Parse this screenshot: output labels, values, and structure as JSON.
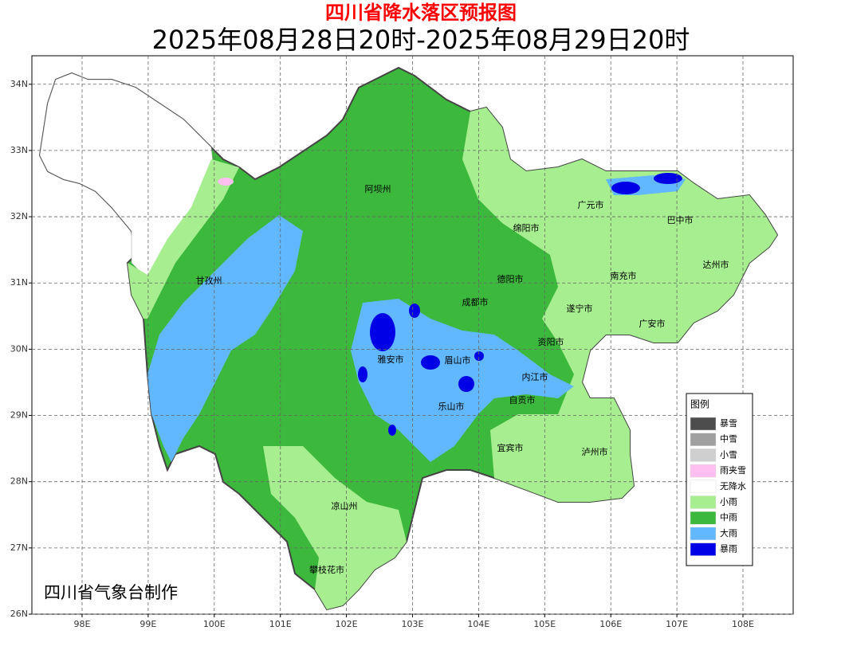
{
  "header": {
    "title": "四川省降水落区预报图",
    "subtitle": "2025年08月28日20时-2025年08月29日20时"
  },
  "map": {
    "xlim": [
      97.24,
      108.76
    ],
    "ylim": [
      26,
      34.43
    ],
    "xticks": [
      {
        "value": 98,
        "label": "98E"
      },
      {
        "value": 99,
        "label": "99E"
      },
      {
        "value": 100,
        "label": "100E"
      },
      {
        "value": 101,
        "label": "101E"
      },
      {
        "value": 102,
        "label": "102E"
      },
      {
        "value": 103,
        "label": "103E"
      },
      {
        "value": 104,
        "label": "104E"
      },
      {
        "value": 105,
        "label": "105E"
      },
      {
        "value": 106,
        "label": "106E"
      },
      {
        "value": 107,
        "label": "107E"
      },
      {
        "value": 108,
        "label": "108E"
      }
    ],
    "yticks": [
      {
        "value": 26,
        "label": "26N"
      },
      {
        "value": 27,
        "label": "27N"
      },
      {
        "value": 28,
        "label": "28N"
      },
      {
        "value": 29,
        "label": "29N"
      },
      {
        "value": 30,
        "label": "30N"
      },
      {
        "value": 31,
        "label": "31N"
      },
      {
        "value": 32,
        "label": "32N"
      },
      {
        "value": 33,
        "label": "33N"
      },
      {
        "value": 34,
        "label": "34N"
      }
    ],
    "regions": [
      "阿坝州",
      "甘孜州",
      "广元市",
      "巴中市",
      "绵阳市",
      "达州市",
      "德阳市",
      "南充市",
      "成都市",
      "遂宁市",
      "广安市",
      "资阳市",
      "雅安市",
      "眉山市",
      "内江市",
      "自贡市",
      "乐山市",
      "宜宾市",
      "泸州市",
      "凉山州",
      "攀枝花市"
    ]
  },
  "legend": {
    "title": "图例",
    "items": [
      {
        "label": "暴雪",
        "color": "#4d4d4d"
      },
      {
        "label": "中雪",
        "color": "#a0a0a0"
      },
      {
        "label": "小雪",
        "color": "#cfcfcf"
      },
      {
        "label": "雨夹雪",
        "color": "#ffbfef"
      },
      {
        "label": "无降水",
        "color": "#ffffff"
      },
      {
        "label": "小雨",
        "color": "#a6ee8f"
      },
      {
        "label": "中雨",
        "color": "#3cb93c"
      },
      {
        "label": "大雨",
        "color": "#61b8ff"
      },
      {
        "label": "暴雨",
        "color": "#0000e6"
      }
    ]
  },
  "footer": {
    "credit": "四川省气象台制作"
  }
}
